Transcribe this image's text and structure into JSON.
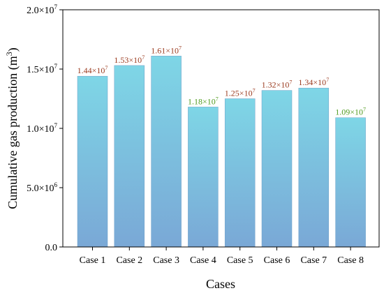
{
  "colors": {
    "bar_top": "#7ed6e6",
    "bar_bottom": "#7aa8d6",
    "label_brown": "#9a3a1e",
    "label_green": "#4f9a1e",
    "axis": "#000000"
  },
  "chart_data": {
    "type": "bar",
    "xlabel": "Cases",
    "ylabel": "Cumulative gas production (m3)",
    "ylabel_main": "Cumulative gas production (m",
    "ylabel_sup": "3",
    "ylabel_close": ")",
    "ylim": [
      0,
      20000000
    ],
    "categories": [
      "Case 1",
      "Case 2",
      "Case 3",
      "Case 4",
      "Case 5",
      "Case 6",
      "Case 7",
      "Case 8"
    ],
    "values": [
      14400000,
      15300000,
      16100000,
      11800000,
      12500000,
      13200000,
      13400000,
      10900000
    ],
    "value_labels": [
      {
        "mantissa": "1.44×10",
        "exp": "7",
        "color": "brown"
      },
      {
        "mantissa": "1.53×10",
        "exp": "7",
        "color": "brown"
      },
      {
        "mantissa": "1.61×10",
        "exp": "7",
        "color": "brown"
      },
      {
        "mantissa": "1.18×10",
        "exp": "7",
        "color": "green"
      },
      {
        "mantissa": "1.25×10",
        "exp": "7",
        "color": "brown"
      },
      {
        "mantissa": "1.32×10",
        "exp": "7",
        "color": "brown"
      },
      {
        "mantissa": "1.34×10",
        "exp": "7",
        "color": "brown"
      },
      {
        "mantissa": "1.09×10",
        "exp": "7",
        "color": "green"
      }
    ],
    "yticks": [
      {
        "value": 0,
        "label": "0.0",
        "exp": ""
      },
      {
        "value": 5000000,
        "label": "5.0×10",
        "exp": "6"
      },
      {
        "value": 10000000,
        "label": "1.0×10",
        "exp": "7"
      },
      {
        "value": 15000000,
        "label": "1.5×10",
        "exp": "7"
      },
      {
        "value": 20000000,
        "label": "2.0×10",
        "exp": "7"
      }
    ],
    "grid": false,
    "legend": "none"
  }
}
